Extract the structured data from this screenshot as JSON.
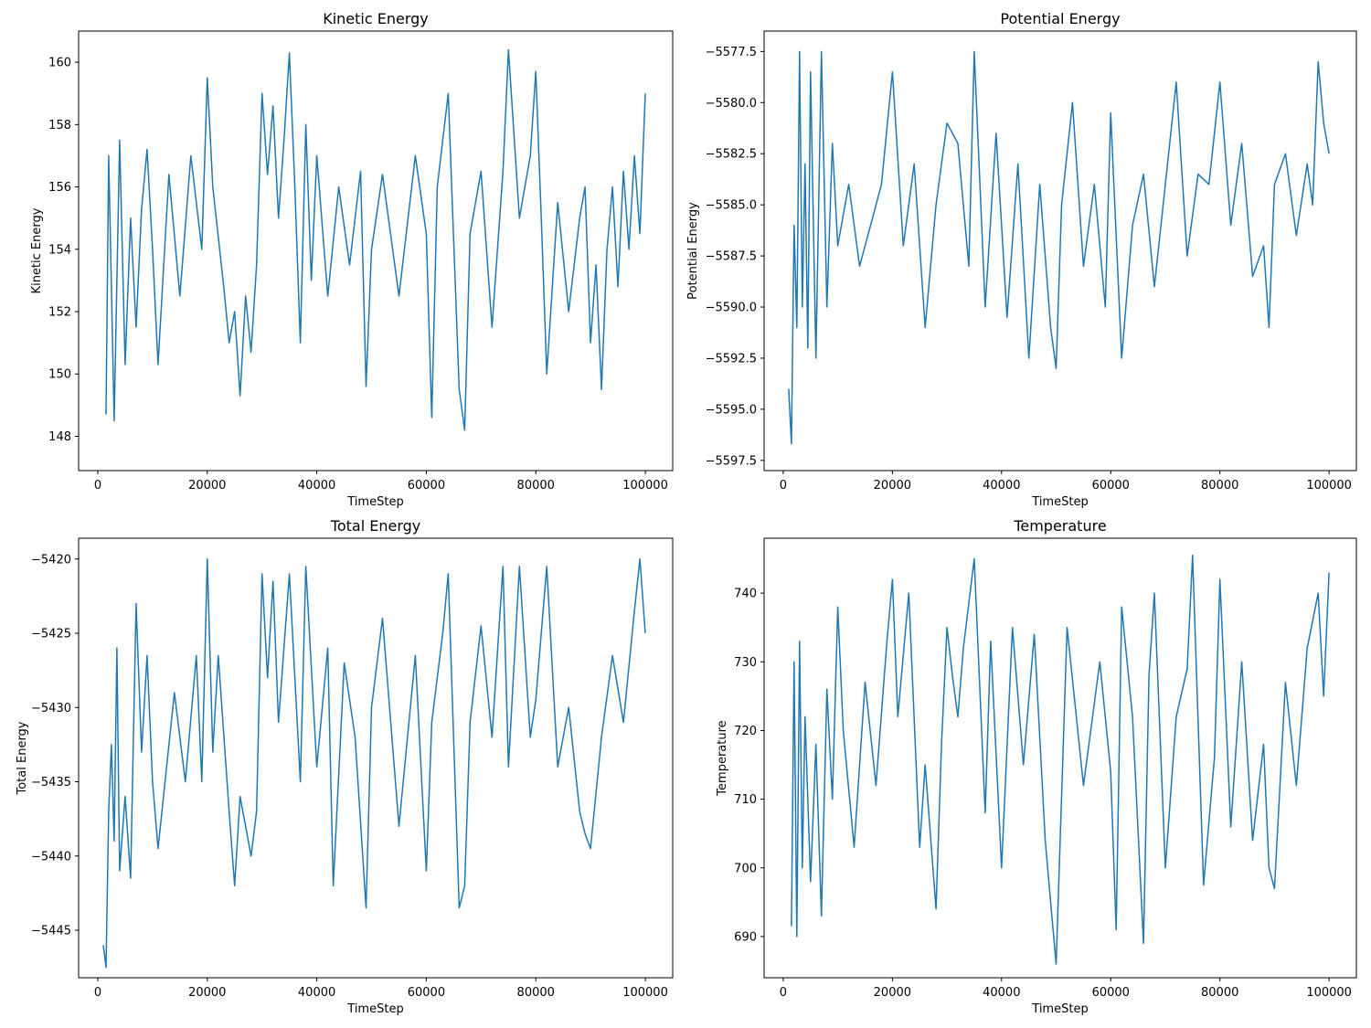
{
  "chart_data": [
    {
      "type": "line",
      "title": "Kinetic Energy",
      "xlabel": "TimeStep",
      "ylabel": "Kinetic Energy",
      "xlim": [
        -3500,
        105000
      ],
      "ylim": [
        146.9,
        161.0
      ],
      "xticks": [
        0,
        20000,
        40000,
        60000,
        80000,
        100000
      ],
      "yticks": [
        148,
        150,
        152,
        154,
        156,
        158,
        160
      ],
      "ytick_labels": [
        "148",
        "150",
        "152",
        "154",
        "156",
        "158",
        "160"
      ],
      "color": "#1f77b4",
      "grid": false,
      "series": [
        {
          "x": [
            1500,
            2000,
            3000,
            4000,
            5000,
            6000,
            7000,
            8000,
            9000,
            10000,
            11000,
            13000,
            15000,
            17000,
            19000,
            20000,
            21000,
            23000,
            24000,
            25000,
            26000,
            27000,
            28000,
            29000,
            30000,
            31000,
            32000,
            33000,
            34000,
            35000,
            36000,
            37000,
            38000,
            39000,
            40000,
            42000,
            44000,
            46000,
            48000,
            49000,
            50000,
            52000,
            55000,
            58000,
            60000,
            61000,
            62000,
            64000,
            66000,
            67000,
            68000,
            70000,
            72000,
            74000,
            75000,
            77000,
            79000,
            80000,
            81000,
            82000,
            84000,
            86000,
            88000,
            89000,
            90000,
            91000,
            92000,
            93000,
            94000,
            95000,
            96000,
            97000,
            98000,
            99000,
            100000
          ],
          "y": [
            148.7,
            157.0,
            148.5,
            157.5,
            150.3,
            155.0,
            151.5,
            155.3,
            157.2,
            154.0,
            150.3,
            156.4,
            152.5,
            157.0,
            154.0,
            159.5,
            156.0,
            152.8,
            151.0,
            152.0,
            149.3,
            152.5,
            150.7,
            153.5,
            159.0,
            156.4,
            158.6,
            155.0,
            157.5,
            160.3,
            156.0,
            151.0,
            158.0,
            153.0,
            157.0,
            152.5,
            156.0,
            153.5,
            156.5,
            149.6,
            154.0,
            156.4,
            152.5,
            157.0,
            154.5,
            148.6,
            156.0,
            159.0,
            149.5,
            148.2,
            154.5,
            156.5,
            151.5,
            156.5,
            160.4,
            155.0,
            157.0,
            159.7,
            155.0,
            150.0,
            155.5,
            152.0,
            155.0,
            156.0,
            151.0,
            153.5,
            149.5,
            154.0,
            156.0,
            152.8,
            156.5,
            154.0,
            157.0,
            154.5,
            159.0
          ]
        }
      ]
    },
    {
      "type": "line",
      "title": "Potential Energy",
      "xlabel": "TimeStep",
      "ylabel": "Potential Energy",
      "xlim": [
        -3500,
        105000
      ],
      "ylim": [
        -5598.0,
        -5576.5
      ],
      "xticks": [
        0,
        20000,
        40000,
        60000,
        80000,
        100000
      ],
      "yticks": [
        -5597.5,
        -5595.0,
        -5592.5,
        -5590.0,
        -5587.5,
        -5585.0,
        -5582.5,
        -5580.0,
        -5577.5
      ],
      "ytick_labels": [
        "−5597.5",
        "−5595.0",
        "−5592.5",
        "−5590.0",
        "−5587.5",
        "−5585.0",
        "−5582.5",
        "−5580.0",
        "−5577.5"
      ],
      "color": "#1f77b4",
      "grid": false,
      "series": [
        {
          "x": [
            1000,
            1500,
            2000,
            2500,
            3000,
            3500,
            4000,
            4500,
            5000,
            6000,
            7000,
            8000,
            9000,
            10000,
            12000,
            14000,
            16000,
            18000,
            20000,
            22000,
            24000,
            26000,
            28000,
            30000,
            32000,
            34000,
            35000,
            37000,
            39000,
            41000,
            43000,
            45000,
            47000,
            49000,
            50000,
            51000,
            53000,
            55000,
            57000,
            59000,
            60000,
            62000,
            64000,
            66000,
            68000,
            70000,
            72000,
            74000,
            76000,
            78000,
            80000,
            82000,
            84000,
            86000,
            88000,
            89000,
            90000,
            92000,
            94000,
            96000,
            97000,
            98000,
            99000,
            100000
          ],
          "y": [
            -5594.0,
            -5596.7,
            -5586.0,
            -5591.0,
            -5577.5,
            -5590.0,
            -5583.0,
            -5592.0,
            -5578.5,
            -5592.5,
            -5577.5,
            -5590.0,
            -5582.0,
            -5587.0,
            -5584.0,
            -5588.0,
            -5586.0,
            -5584.0,
            -5578.5,
            -5587.0,
            -5583.0,
            -5591.0,
            -5585.0,
            -5581.0,
            -5582.0,
            -5588.0,
            -5577.5,
            -5590.0,
            -5581.5,
            -5590.5,
            -5583.0,
            -5592.5,
            -5584.0,
            -5591.0,
            -5593.0,
            -5585.0,
            -5580.0,
            -5588.0,
            -5584.0,
            -5590.0,
            -5580.5,
            -5592.5,
            -5586.0,
            -5583.5,
            -5589.0,
            -5584.0,
            -5579.0,
            -5587.5,
            -5583.5,
            -5584.0,
            -5579.0,
            -5586.0,
            -5582.0,
            -5588.5,
            -5587.0,
            -5591.0,
            -5584.0,
            -5582.5,
            -5586.5,
            -5583.0,
            -5585.0,
            -5578.0,
            -5581.0,
            -5582.5
          ]
        }
      ]
    },
    {
      "type": "line",
      "title": "Total Energy",
      "xlabel": "TimeStep",
      "ylabel": "Total Energy",
      "xlim": [
        -3500,
        105000
      ],
      "ylim": [
        -5448.2,
        -5418.6
      ],
      "xticks": [
        0,
        20000,
        40000,
        60000,
        80000,
        100000
      ],
      "yticks": [
        -5445,
        -5440,
        -5435,
        -5430,
        -5425,
        -5420
      ],
      "ytick_labels": [
        "−5445",
        "−5440",
        "−5435",
        "−5430",
        "−5425",
        "−5420"
      ],
      "color": "#1f77b4",
      "grid": false,
      "series": [
        {
          "x": [
            1000,
            1500,
            2000,
            2500,
            3000,
            3500,
            4000,
            5000,
            6000,
            7000,
            8000,
            9000,
            10000,
            11000,
            12000,
            14000,
            16000,
            18000,
            19000,
            20000,
            21000,
            22000,
            24000,
            25000,
            26000,
            28000,
            29000,
            30000,
            31000,
            32000,
            33000,
            35000,
            37000,
            38000,
            40000,
            42000,
            43000,
            45000,
            47000,
            49000,
            50000,
            52000,
            55000,
            58000,
            60000,
            61000,
            63000,
            64000,
            66000,
            67000,
            68000,
            70000,
            72000,
            74000,
            75000,
            77000,
            79000,
            80000,
            82000,
            84000,
            86000,
            88000,
            89000,
            90000,
            92000,
            94000,
            96000,
            98000,
            99000,
            100000
          ],
          "y": [
            -5446.0,
            -5447.5,
            -5437.0,
            -5432.5,
            -5439.0,
            -5426.0,
            -5441.0,
            -5436.0,
            -5441.5,
            -5423.0,
            -5433.0,
            -5426.5,
            -5435.0,
            -5439.5,
            -5436.0,
            -5429.0,
            -5435.0,
            -5426.5,
            -5435.0,
            -5420.0,
            -5433.0,
            -5426.5,
            -5437.0,
            -5442.0,
            -5436.0,
            -5440.0,
            -5437.0,
            -5421.0,
            -5428.0,
            -5421.5,
            -5431.0,
            -5421.0,
            -5435.0,
            -5420.5,
            -5434.0,
            -5426.0,
            -5442.0,
            -5427.0,
            -5432.0,
            -5443.5,
            -5430.0,
            -5424.0,
            -5438.0,
            -5426.5,
            -5441.0,
            -5431.0,
            -5425.0,
            -5421.0,
            -5443.5,
            -5442.0,
            -5431.0,
            -5424.5,
            -5432.0,
            -5420.5,
            -5434.0,
            -5420.5,
            -5432.0,
            -5429.5,
            -5420.5,
            -5434.0,
            -5430.0,
            -5437.0,
            -5438.5,
            -5439.5,
            -5432.0,
            -5426.5,
            -5431.0,
            -5423.5,
            -5420.0,
            -5425.0
          ]
        }
      ]
    },
    {
      "type": "line",
      "title": "Temperature",
      "xlabel": "TimeStep",
      "ylabel": "Temperature",
      "xlim": [
        -3500,
        105000
      ],
      "ylim": [
        684.0,
        748.0
      ],
      "xticks": [
        0,
        20000,
        40000,
        60000,
        80000,
        100000
      ],
      "yticks": [
        690,
        700,
        710,
        720,
        730,
        740
      ],
      "ytick_labels": [
        "690",
        "700",
        "710",
        "720",
        "730",
        "740"
      ],
      "color": "#1f77b4",
      "grid": false,
      "series": [
        {
          "x": [
            1500,
            2000,
            2500,
            3000,
            3500,
            4000,
            5000,
            6000,
            7000,
            8000,
            9000,
            10000,
            11000,
            13000,
            15000,
            17000,
            19000,
            20000,
            21000,
            23000,
            25000,
            26000,
            28000,
            29000,
            30000,
            31000,
            32000,
            33000,
            35000,
            37000,
            38000,
            40000,
            42000,
            44000,
            46000,
            48000,
            49000,
            50000,
            52000,
            55000,
            58000,
            60000,
            61000,
            62000,
            64000,
            66000,
            67000,
            68000,
            70000,
            72000,
            74000,
            75000,
            77000,
            79000,
            80000,
            82000,
            84000,
            86000,
            88000,
            89000,
            90000,
            92000,
            94000,
            96000,
            98000,
            99000,
            100000
          ],
          "y": [
            691.5,
            730.0,
            690.0,
            733.0,
            700.0,
            722.0,
            698.0,
            718.0,
            693.0,
            726.0,
            710.0,
            738.0,
            720.0,
            703.0,
            727.0,
            712.0,
            733.0,
            742.0,
            722.0,
            740.0,
            703.0,
            715.0,
            694.0,
            718.0,
            735.0,
            728.0,
            722.0,
            732.0,
            745.0,
            708.0,
            733.0,
            700.0,
            735.0,
            715.0,
            734.0,
            704.0,
            695.0,
            686.0,
            735.0,
            712.0,
            730.0,
            714.0,
            691.0,
            738.0,
            722.0,
            689.0,
            728.0,
            740.0,
            700.0,
            722.0,
            729.0,
            745.5,
            697.5,
            716.0,
            742.0,
            706.0,
            730.0,
            704.0,
            718.0,
            700.0,
            697.0,
            727.0,
            712.0,
            732.0,
            740.0,
            725.0,
            743.0
          ]
        }
      ]
    }
  ]
}
